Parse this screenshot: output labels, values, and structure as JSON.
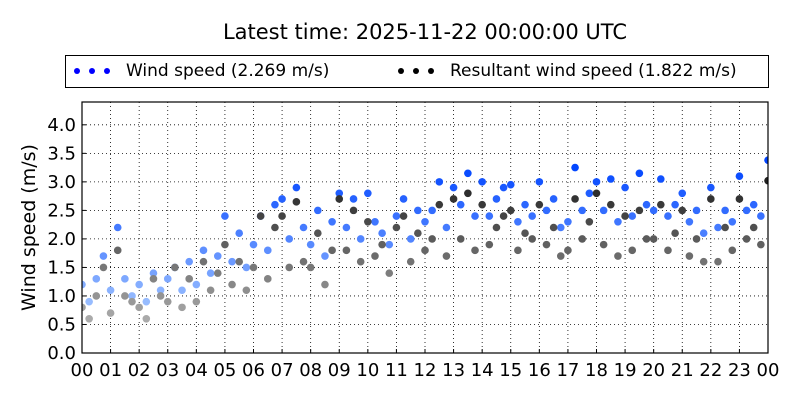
{
  "chart_data": {
    "type": "scatter",
    "title": "Latest time: 2025-11-22 00:00:00 UTC",
    "xlabel": "",
    "ylabel": "Wind speed (m/s)",
    "xlim": [
      0,
      24
    ],
    "ylim": [
      0,
      4.4
    ],
    "xticks": [
      "00",
      "01",
      "02",
      "03",
      "04",
      "05",
      "06",
      "07",
      "08",
      "09",
      "10",
      "11",
      "12",
      "13",
      "14",
      "15",
      "16",
      "17",
      "18",
      "19",
      "20",
      "21",
      "22",
      "23",
      "00"
    ],
    "yticks": [
      "0.0",
      "0.5",
      "1.0",
      "1.5",
      "2.0",
      "2.5",
      "3.0",
      "3.5",
      "4.0"
    ],
    "grid": true,
    "legend_placement": "top",
    "x": [
      0,
      0.25,
      0.5,
      0.75,
      1,
      1.25,
      1.5,
      1.75,
      2,
      2.25,
      2.5,
      2.75,
      3,
      3.25,
      3.5,
      3.75,
      4,
      4.25,
      4.5,
      4.75,
      5,
      5.25,
      5.5,
      5.75,
      6,
      6.25,
      6.5,
      6.75,
      7,
      7.25,
      7.5,
      7.75,
      8,
      8.25,
      8.5,
      8.75,
      9,
      9.25,
      9.5,
      9.75,
      10,
      10.25,
      10.5,
      10.75,
      11,
      11.25,
      11.5,
      11.75,
      12,
      12.25,
      12.5,
      12.75,
      13,
      13.25,
      13.5,
      13.75,
      14,
      14.25,
      14.5,
      14.75,
      15,
      15.25,
      15.5,
      15.75,
      16,
      16.25,
      16.5,
      16.75,
      17,
      17.25,
      17.5,
      17.75,
      18,
      18.25,
      18.5,
      18.75,
      19,
      19.25,
      19.5,
      19.75,
      20,
      20.25,
      20.5,
      20.75,
      21,
      21.25,
      21.5,
      21.75,
      22,
      22.25,
      22.5,
      22.75,
      23,
      23.25,
      23.5,
      23.75,
      24
    ],
    "series": [
      {
        "name": "Wind speed (2.269 m/s)",
        "color": "#0044ff",
        "light_color": "#b0d0ff",
        "values": [
          1.2,
          0.9,
          1.3,
          1.7,
          1.1,
          2.2,
          1.3,
          1.0,
          1.2,
          0.9,
          1.4,
          1.1,
          1.3,
          1.5,
          1.1,
          1.6,
          1.2,
          1.8,
          1.4,
          1.7,
          2.4,
          1.6,
          2.1,
          1.5,
          1.9,
          2.4,
          1.8,
          2.6,
          2.7,
          2.0,
          2.9,
          2.2,
          1.9,
          2.5,
          1.7,
          2.3,
          2.8,
          2.2,
          2.7,
          2.0,
          2.8,
          2.3,
          2.1,
          1.9,
          2.4,
          2.7,
          2.0,
          2.5,
          2.3,
          2.5,
          3.0,
          2.2,
          2.9,
          2.6,
          3.15,
          2.4,
          3.0,
          2.4,
          2.7,
          2.9,
          2.95,
          2.3,
          2.6,
          2.4,
          3.0,
          2.5,
          2.7,
          2.2,
          2.3,
          3.25,
          2.5,
          2.8,
          3.0,
          2.5,
          3.05,
          2.3,
          2.9,
          2.4,
          3.15,
          2.6,
          2.5,
          3.05,
          2.4,
          2.6,
          2.8,
          2.3,
          2.5,
          2.1,
          2.9,
          2.2,
          2.5,
          2.3,
          3.1,
          2.5,
          2.6,
          2.4,
          3.38
        ]
      },
      {
        "name": "Resultant wind speed (1.822 m/s)",
        "color": "#111111",
        "light_color": "#b0b0b0",
        "values": [
          0.8,
          0.6,
          1.0,
          1.5,
          0.7,
          1.8,
          1.0,
          0.9,
          0.8,
          0.6,
          1.3,
          1.0,
          0.9,
          1.5,
          0.8,
          1.3,
          0.9,
          1.6,
          1.1,
          1.4,
          1.9,
          1.2,
          1.6,
          1.1,
          1.5,
          2.4,
          1.3,
          2.2,
          2.4,
          1.5,
          2.65,
          1.6,
          1.5,
          2.1,
          1.2,
          1.8,
          2.7,
          1.8,
          2.5,
          1.6,
          2.3,
          1.7,
          1.9,
          1.4,
          2.2,
          2.4,
          1.6,
          2.1,
          1.8,
          2.0,
          2.6,
          1.7,
          2.7,
          2.0,
          2.8,
          1.8,
          2.6,
          1.9,
          2.2,
          2.4,
          2.5,
          1.8,
          2.1,
          2.0,
          2.6,
          1.9,
          2.2,
          1.7,
          1.8,
          2.7,
          2.0,
          2.3,
          2.8,
          1.9,
          2.6,
          1.7,
          2.4,
          1.8,
          2.5,
          2.0,
          2.0,
          2.6,
          1.8,
          2.1,
          2.5,
          1.7,
          2.0,
          1.6,
          2.7,
          1.6,
          2.2,
          1.8,
          2.7,
          2.0,
          2.2,
          1.9,
          3.02
        ]
      }
    ]
  },
  "legend": {
    "items": [
      {
        "label": "Wind speed (2.269 m/s)",
        "dot_color": "#0000ff"
      },
      {
        "label": "Resultant wind speed (1.822 m/s)",
        "dot_color": "#000000"
      }
    ]
  }
}
